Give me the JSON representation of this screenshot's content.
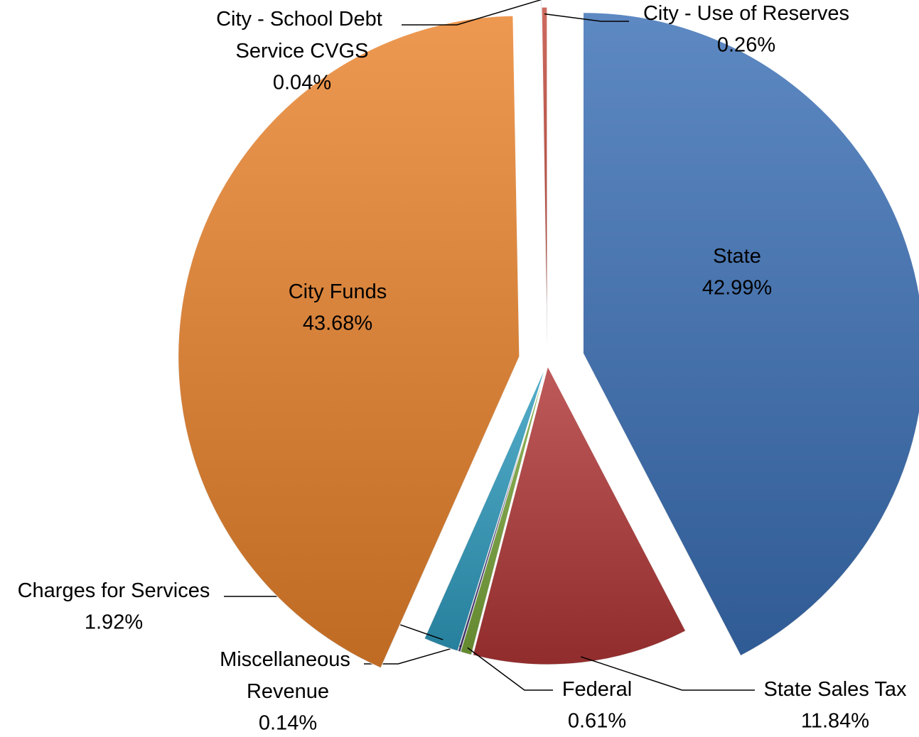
{
  "chart_data": {
    "type": "pie",
    "categories": [
      "State",
      "State Sales Tax",
      "Federal",
      "Miscellaneous Revenue",
      "Charges for Services",
      "City Funds",
      "City - School Debt Service CVGS",
      "City - Use of Reserves"
    ],
    "values": [
      42.99,
      11.84,
      0.61,
      0.14,
      1.92,
      43.68,
      0.04,
      0.26
    ],
    "value_labels": [
      "42.99%",
      "11.84%",
      "0.61%",
      "0.14%",
      "1.92%",
      "43.68%",
      "0.04%",
      "0.26%"
    ],
    "colors": [
      "#3a6fb5",
      "#b13636",
      "#7aa63a",
      "#4b3d7d",
      "#2f9cbf",
      "#e9822b",
      "#2b4a8c",
      "#c24a3c"
    ]
  }
}
